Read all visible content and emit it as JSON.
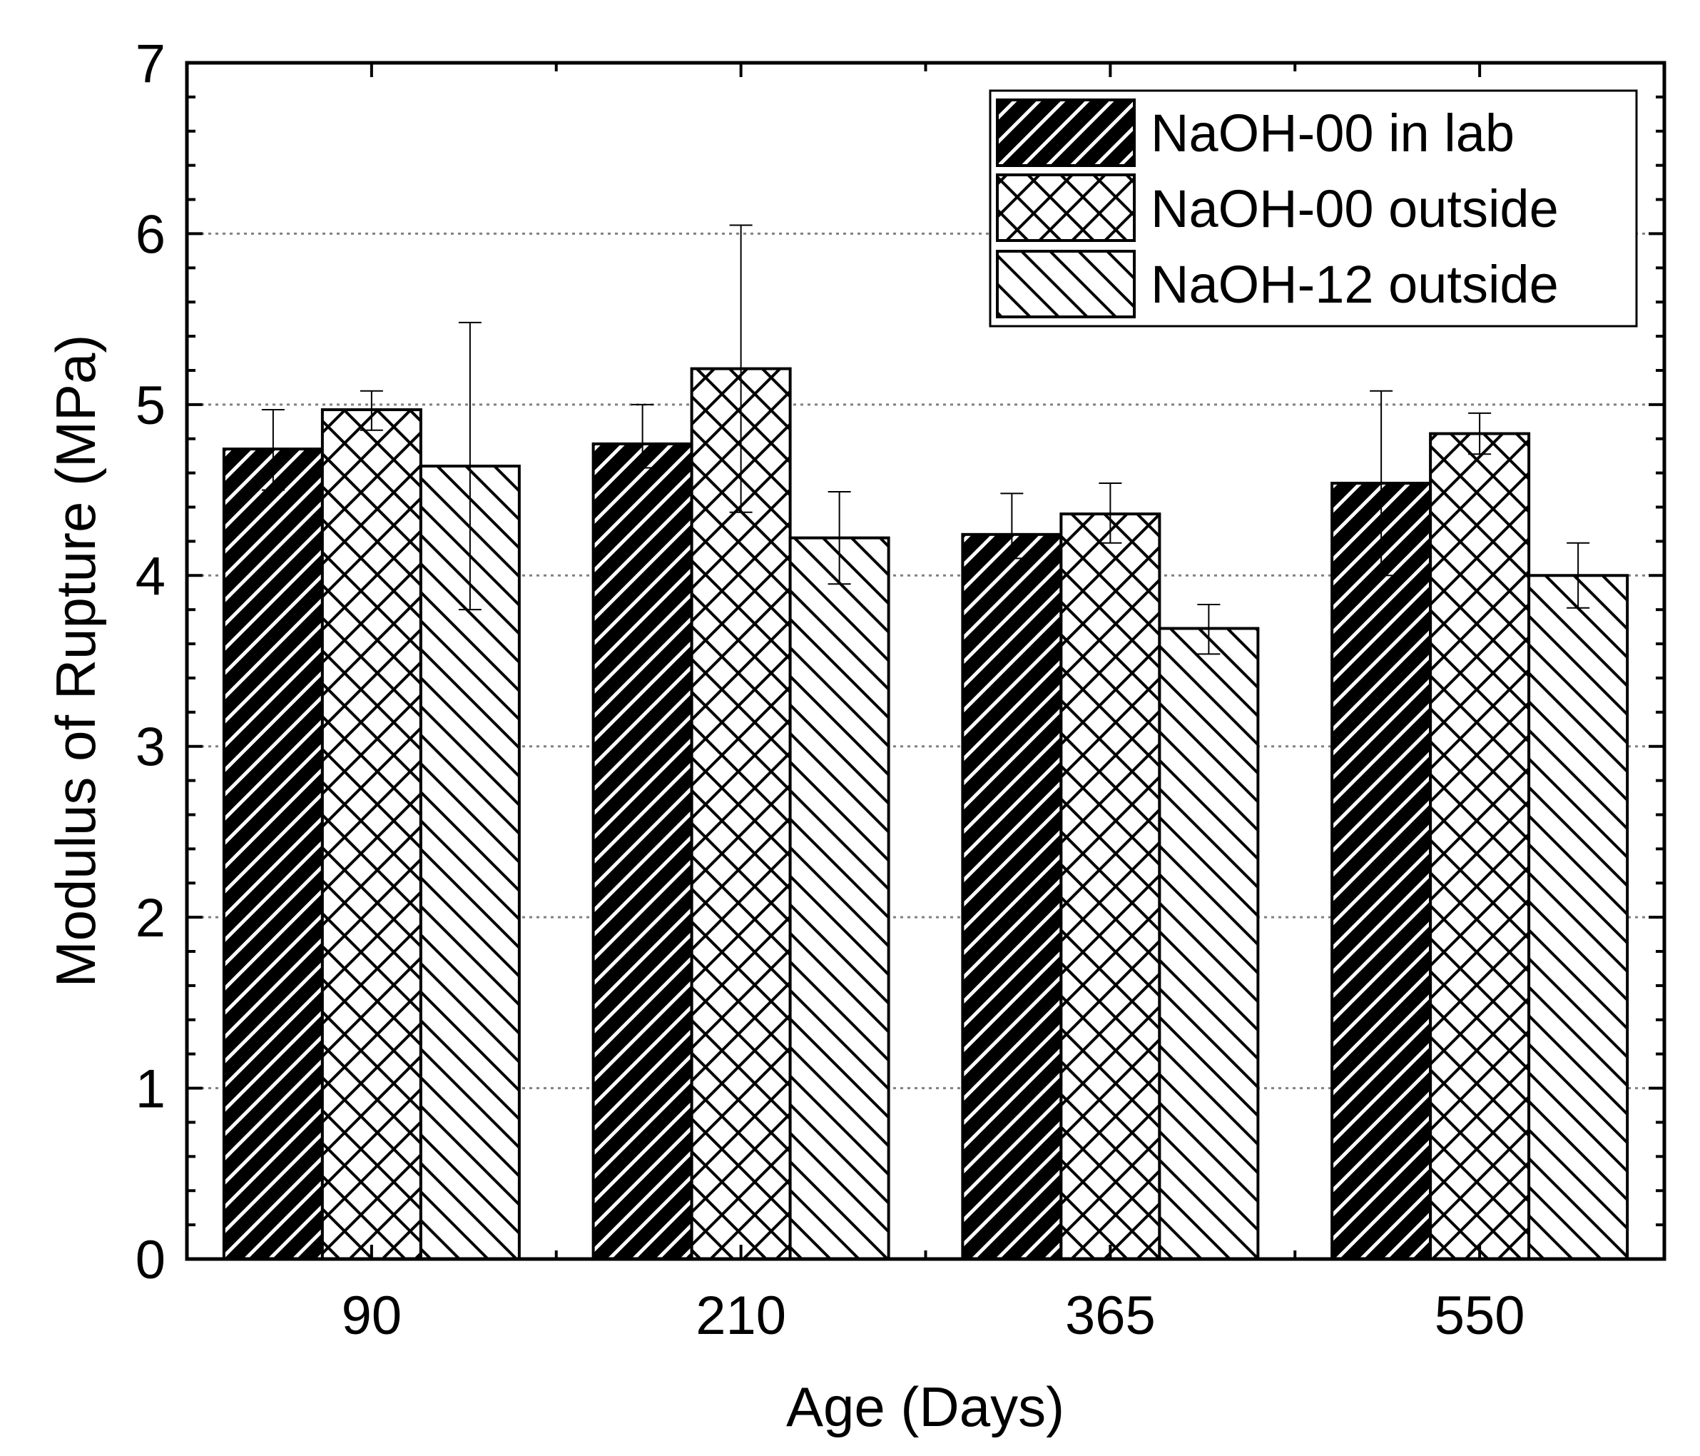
{
  "chart_data": {
    "type": "bar",
    "title": "",
    "xlabel": "Age (Days)",
    "ylabel": "Modulus of Rupture (MPa)",
    "categories": [
      "90",
      "210",
      "365",
      "550"
    ],
    "ylim": [
      0,
      7
    ],
    "yticks": [
      "0",
      "1",
      "2",
      "3",
      "4",
      "5",
      "6",
      "7"
    ],
    "grid": true,
    "legend_position": "top-right",
    "series": [
      {
        "name": "NaOH-00 in lab",
        "pattern": "black-forward-hatch",
        "values": [
          4.74,
          4.77,
          4.24,
          4.54
        ],
        "error_low": [
          4.5,
          4.63,
          4.1,
          4.0
        ],
        "error_high": [
          4.97,
          5.0,
          4.48,
          5.08
        ]
      },
      {
        "name": "NaOH-00 outside",
        "pattern": "cross-hatch",
        "values": [
          4.97,
          5.21,
          4.36,
          4.83
        ],
        "error_low": [
          4.85,
          4.37,
          4.19,
          4.71
        ],
        "error_high": [
          5.08,
          6.05,
          4.54,
          4.95
        ]
      },
      {
        "name": "NaOH-12 outside",
        "pattern": "back-hatch",
        "values": [
          4.64,
          4.22,
          3.69,
          4.0
        ],
        "error_low": [
          3.8,
          3.95,
          3.54,
          3.81
        ],
        "error_high": [
          5.48,
          4.49,
          3.83,
          4.19
        ]
      }
    ]
  }
}
